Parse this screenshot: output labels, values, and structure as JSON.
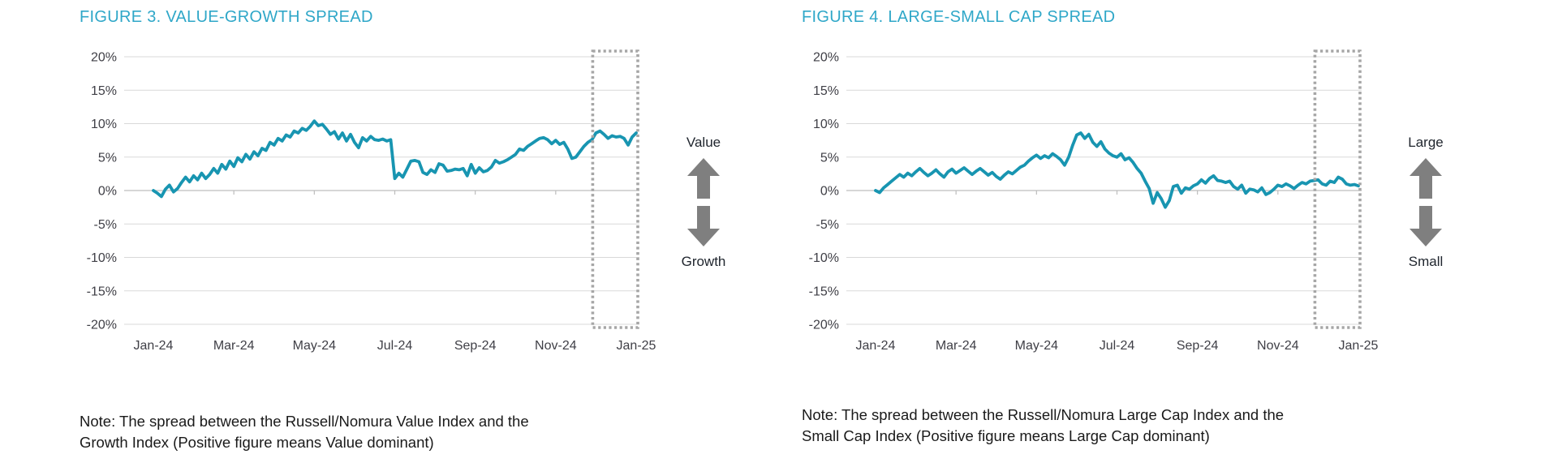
{
  "colors": {
    "background": "#FFFFFF",
    "title_text": "#2FA7C8",
    "line": "#1895B1",
    "gridline": "#D9D9D9",
    "axis_line": "#BDBDBD",
    "tick_text": "#3F3F46",
    "note_text": "#1A1A1A",
    "arrow": "#7F7F7F",
    "highlight_box": "#A6A6A6",
    "direction_label_text": "#20262E"
  },
  "figures": [
    {
      "title": "FIGURE 3. VALUE-GROWTH SPREAD",
      "direction_top_label": "Value",
      "direction_bottom_label": "Growth",
      "note_line1": "Note: The spread between the Russell/Nomura Value Index and the",
      "note_line2": "Growth Index (Positive figure means Value dominant)",
      "chart_data": {
        "type": "line",
        "title": "Value-Growth spread",
        "xlabel": "",
        "ylabel": "",
        "ylim": [
          -20,
          20
        ],
        "grid": true,
        "legend_position": "none",
        "y_tick_labels": [
          "20%",
          "15%",
          "10%",
          "5%",
          "0%",
          "-5%",
          "-10%",
          "-15%",
          "-20%"
        ],
        "x_tick_labels": [
          "Jan-24",
          "Mar-24",
          "May-24",
          "Jul-24",
          "Sep-24",
          "Nov-24",
          "Jan-25"
        ],
        "x_range_months": 12,
        "line_color": "#1895B1",
        "highlight": {
          "x_month_start": 11,
          "x_month_end": 12,
          "style": "dashed-box"
        },
        "series": [
          {
            "name": "Value minus Growth spread (%)",
            "values": [
              0.0,
              -0.4,
              -0.9,
              0.2,
              0.8,
              -0.2,
              0.3,
              1.2,
              2.0,
              1.3,
              2.2,
              1.6,
              2.6,
              1.8,
              2.4,
              3.3,
              2.6,
              3.9,
              3.2,
              4.4,
              3.6,
              4.9,
              4.3,
              5.4,
              4.7,
              5.8,
              5.2,
              6.3,
              6.0,
              7.2,
              6.8,
              7.8,
              7.4,
              8.3,
              8.0,
              8.9,
              8.6,
              9.3,
              9.0,
              9.6,
              10.4,
              9.7,
              9.9,
              9.2,
              8.4,
              8.8,
              7.7,
              8.6,
              7.4,
              8.4,
              7.2,
              6.4,
              7.9,
              7.4,
              8.1,
              7.6,
              7.5,
              7.7,
              7.4,
              7.6,
              1.8,
              2.6,
              2.0,
              3.2,
              4.4,
              4.5,
              4.3,
              2.7,
              2.4,
              3.1,
              2.7,
              4.0,
              3.8,
              2.9,
              3.0,
              3.2,
              3.1,
              3.3,
              2.2,
              3.9,
              2.6,
              3.4,
              2.8,
              3.0,
              3.5,
              4.5,
              4.1,
              4.3,
              4.6,
              5.0,
              5.4,
              6.2,
              6.0,
              6.6,
              7.0,
              7.4,
              7.8,
              7.9,
              7.6,
              7.0,
              7.5,
              6.9,
              7.2,
              6.2,
              4.8,
              5.0,
              5.8,
              6.6,
              7.2,
              7.6,
              8.6,
              8.9,
              8.4,
              7.8,
              8.2,
              8.0,
              8.1,
              7.8,
              6.8,
              8.0,
              8.6
            ]
          }
        ]
      }
    },
    {
      "title": "FIGURE 4. LARGE-SMALL CAP SPREAD",
      "direction_top_label": "Large",
      "direction_bottom_label": "Small",
      "note_line1": "Note: The spread between the Russell/Nomura Large Cap Index and the",
      "note_line2": "Small Cap Index (Positive figure means Large Cap dominant)",
      "chart_data": {
        "type": "line",
        "title": "Large-Small cap spread",
        "xlabel": "",
        "ylabel": "",
        "ylim": [
          -20,
          20
        ],
        "grid": true,
        "legend_position": "none",
        "y_tick_labels": [
          "20%",
          "15%",
          "10%",
          "5%",
          "0%",
          "-5%",
          "-10%",
          "-15%",
          "-20%"
        ],
        "x_tick_labels": [
          "Jan-24",
          "Mar-24",
          "May-24",
          "Jul-24",
          "Sep-24",
          "Nov-24",
          "Jan-25"
        ],
        "x_range_months": 12,
        "line_color": "#1895B1",
        "highlight": {
          "x_month_start": 11,
          "x_month_end": 12,
          "style": "dashed-box"
        },
        "series": [
          {
            "name": "Large Cap minus Small Cap spread (%)",
            "values": [
              0.0,
              -0.3,
              0.4,
              0.9,
              1.4,
              1.9,
              2.4,
              2.0,
              2.6,
              2.2,
              2.8,
              3.3,
              2.7,
              2.2,
              2.6,
              3.1,
              2.5,
              2.0,
              2.8,
              3.2,
              2.6,
              3.0,
              3.4,
              2.9,
              2.4,
              2.9,
              3.3,
              2.8,
              2.3,
              2.7,
              2.1,
              1.7,
              2.3,
              2.8,
              2.5,
              3.0,
              3.5,
              3.8,
              4.4,
              4.9,
              5.3,
              4.8,
              5.2,
              4.9,
              5.5,
              5.1,
              4.6,
              3.8,
              5.0,
              6.8,
              8.3,
              8.6,
              7.8,
              8.4,
              7.2,
              6.6,
              7.3,
              6.2,
              5.6,
              5.2,
              5.0,
              5.5,
              4.6,
              4.9,
              4.2,
              3.3,
              2.6,
              1.4,
              0.3,
              -1.9,
              -0.3,
              -1.2,
              -2.5,
              -1.5,
              0.6,
              0.8,
              -0.4,
              0.4,
              0.2,
              0.7,
              1.0,
              1.6,
              1.1,
              1.8,
              2.2,
              1.5,
              1.4,
              1.2,
              1.4,
              0.6,
              0.2,
              0.8,
              -0.4,
              0.2,
              0.1,
              -0.2,
              0.4,
              -0.6,
              -0.3,
              0.2,
              0.8,
              0.6,
              1.0,
              0.7,
              0.3,
              0.8,
              1.2,
              1.0,
              1.4,
              1.5,
              1.6,
              1.0,
              0.8,
              1.4,
              1.2,
              2.0,
              1.7,
              1.0,
              0.8,
              0.9,
              0.7
            ]
          }
        ]
      }
    }
  ]
}
